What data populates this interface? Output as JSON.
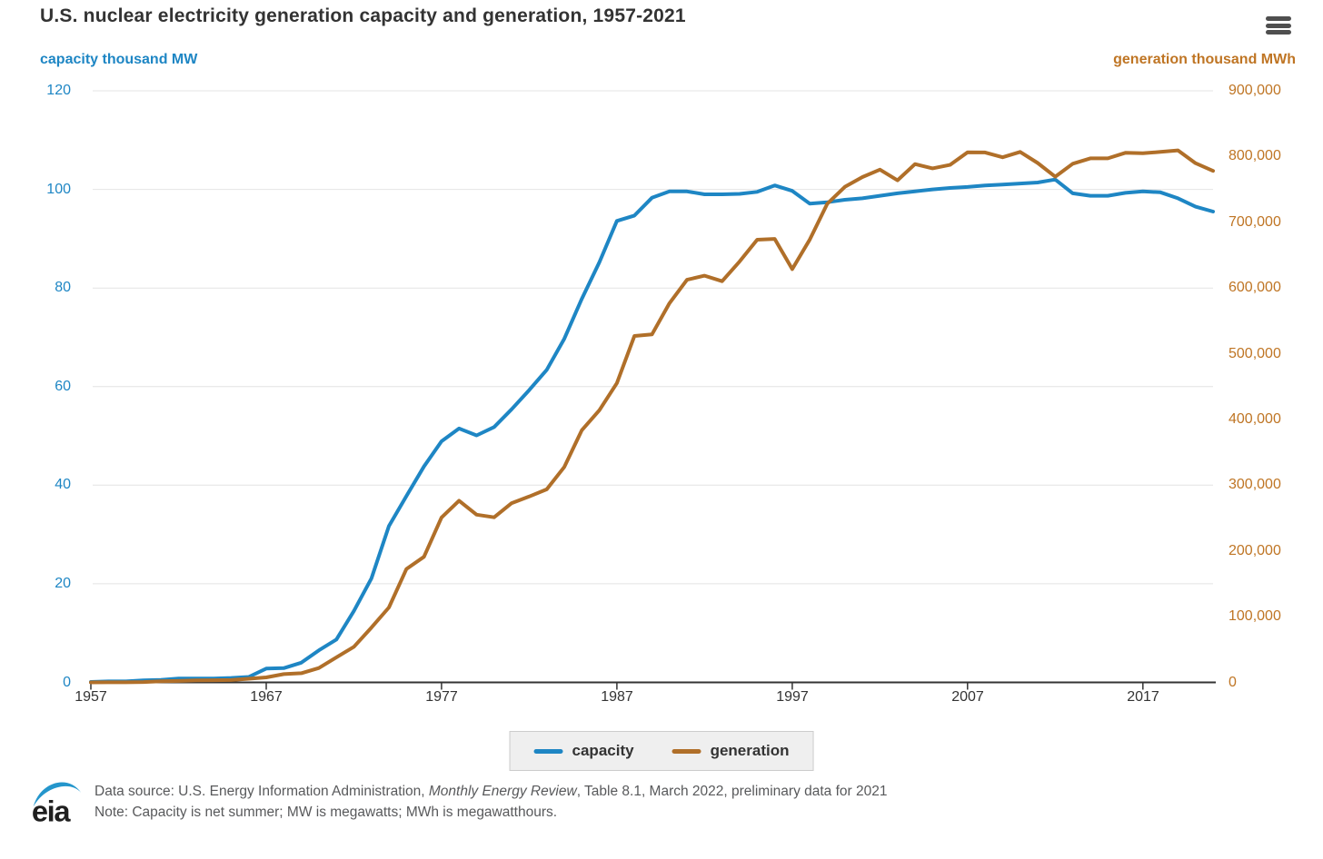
{
  "header": {
    "title": "U.S. nuclear electricity generation capacity and generation, 1957-2021"
  },
  "colors": {
    "capacity": "#1e86c4",
    "generation": "#b06f29",
    "left_axis_text": "#1e86c4",
    "right_axis_text": "#bf7524",
    "title_text": "#333333",
    "x_axis_text": "#333333",
    "grid": "#e4e4e4",
    "axis_line": "#333333",
    "legend_bg": "#efefef",
    "legend_border": "#cccccc",
    "footer_text": "#58595b",
    "menu_icon": "#4f4f4f",
    "logo_blue": "#2496cc",
    "logo_text": "#1f1f1f"
  },
  "icons": {
    "menu": "hamburger-icon",
    "logo": "eia-logo"
  },
  "chart_data": {
    "type": "line",
    "title": "U.S. nuclear electricity generation capacity and generation, 1957-2021",
    "grid": "horizontal-on",
    "legend_position": "bottom-center",
    "x": [
      1957,
      1958,
      1959,
      1960,
      1961,
      1962,
      1963,
      1964,
      1965,
      1966,
      1967,
      1968,
      1969,
      1970,
      1971,
      1972,
      1973,
      1974,
      1975,
      1976,
      1977,
      1978,
      1979,
      1980,
      1981,
      1982,
      1983,
      1984,
      1985,
      1986,
      1987,
      1988,
      1989,
      1990,
      1991,
      1992,
      1993,
      1994,
      1995,
      1996,
      1997,
      1998,
      1999,
      2000,
      2001,
      2002,
      2003,
      2004,
      2005,
      2006,
      2007,
      2008,
      2009,
      2010,
      2011,
      2012,
      2013,
      2014,
      2015,
      2016,
      2017,
      2018,
      2019,
      2020,
      2021
    ],
    "x_ticks": [
      1957,
      1967,
      1977,
      1987,
      1997,
      2007,
      2017
    ],
    "left_axis": {
      "label": "capacity thousand MW",
      "min": 0,
      "max": 120,
      "ticks": [
        0,
        20,
        40,
        60,
        80,
        100,
        120
      ]
    },
    "right_axis": {
      "label": "generation thousand MWh",
      "min": 0,
      "max": 900000,
      "ticks": [
        0,
        100000,
        200000,
        300000,
        400000,
        500000,
        600000,
        700000,
        800000,
        900000
      ]
    },
    "series": [
      {
        "name": "capacity",
        "axis": "left",
        "units": "thousand MW",
        "color": "#1e86c4",
        "values": [
          0.1,
          0.2,
          0.2,
          0.4,
          0.5,
          0.8,
          0.8,
          0.8,
          0.9,
          1.1,
          2.8,
          2.9,
          4.0,
          6.5,
          8.7,
          14.5,
          21.1,
          31.7,
          37.8,
          43.8,
          48.9,
          51.5,
          50.1,
          51.8,
          55.4,
          59.3,
          63.4,
          69.7,
          77.8,
          85.2,
          93.6,
          94.7,
          98.3,
          99.6,
          99.6,
          99.0,
          99.0,
          99.1,
          99.5,
          100.8,
          99.7,
          97.1,
          97.4,
          97.9,
          98.2,
          98.7,
          99.2,
          99.6,
          100.0,
          100.3,
          100.5,
          100.8,
          101.0,
          101.2,
          101.4,
          102.0,
          99.2,
          98.7,
          98.7,
          99.3,
          99.6,
          99.4,
          98.2,
          96.5,
          95.5
        ]
      },
      {
        "name": "generation",
        "axis": "right",
        "units": "thousand MWh",
        "color": "#b06f29",
        "values": [
          10,
          165,
          188,
          518,
          1692,
          2270,
          3212,
          3343,
          3657,
          5520,
          7655,
          12528,
          13928,
          21804,
          38105,
          54091,
          83479,
          113976,
          172505,
          191104,
          250883,
          276403,
          255155,
          251116,
          272674,
          282773,
          293677,
          327634,
          383691,
          414038,
          455270,
          526973,
          529355,
          576862,
          612565,
          618776,
          610291,
          640440,
          673402,
          674729,
          628644,
          673702,
          728254,
          753893,
          768826,
          780064,
          763733,
          788528,
          781986,
          787219,
          806425,
          806208,
          798855,
          806968,
          790204,
          769331,
          789016,
          797166,
          797178,
          805694,
          804950,
          807084,
          809409,
          789879,
          778152
        ]
      }
    ]
  },
  "legend": {
    "items": [
      {
        "label": "capacity"
      },
      {
        "label": "generation"
      }
    ]
  },
  "footer": {
    "source_prefix": "Data source: U.S. Energy Information Administration, ",
    "source_italic": "Monthly Energy Review",
    "source_suffix": ", Table 8.1, March 2022, preliminary data for 2021",
    "note": "Note: Capacity is net summer; MW is megawatts; MWh is megawatthours.",
    "logo_text": "eia"
  }
}
